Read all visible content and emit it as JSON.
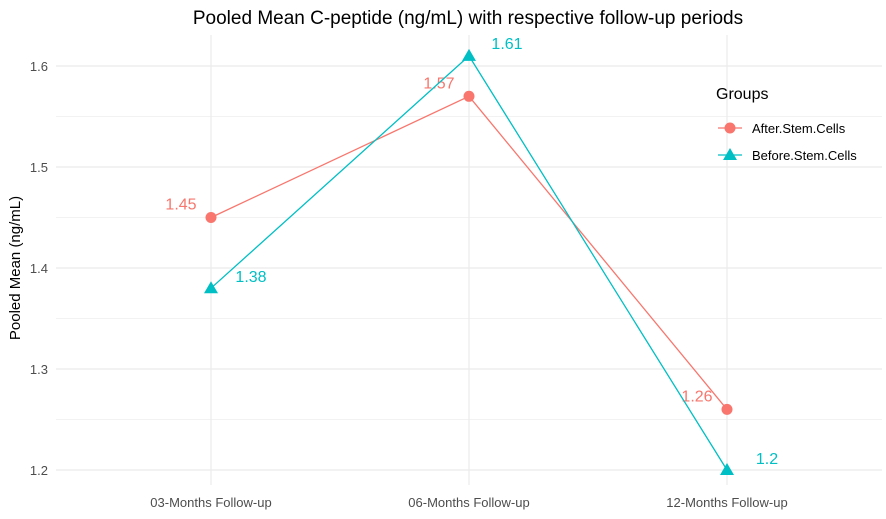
{
  "chart_data": {
    "type": "line",
    "title": "Pooled Mean C-peptide (ng/mL) with respective follow-up periods",
    "xlabel": "",
    "ylabel": "Pooled Mean (ng/mL)",
    "categories": [
      "03-Months Follow-up",
      "06-Months Follow-up",
      "12-Months Follow-up"
    ],
    "yticks": [
      "1.2",
      "1.3",
      "1.4",
      "1.5",
      "1.6"
    ],
    "ylim": [
      1.18,
      1.63
    ],
    "grid": true,
    "legend": {
      "title": "Groups",
      "position": "right-inside"
    },
    "series": [
      {
        "name": "After.Stem.Cells",
        "values": [
          1.45,
          1.57,
          1.26
        ],
        "labels": [
          "1.45",
          "1.57",
          "1.26"
        ],
        "color": "#F8766D",
        "marker": "circle"
      },
      {
        "name": "Before.Stem.Cells",
        "values": [
          1.38,
          1.61,
          1.2
        ],
        "labels": [
          "1.38",
          "1.61",
          "1.2"
        ],
        "color": "#00BFC4",
        "marker": "triangle"
      }
    ]
  }
}
